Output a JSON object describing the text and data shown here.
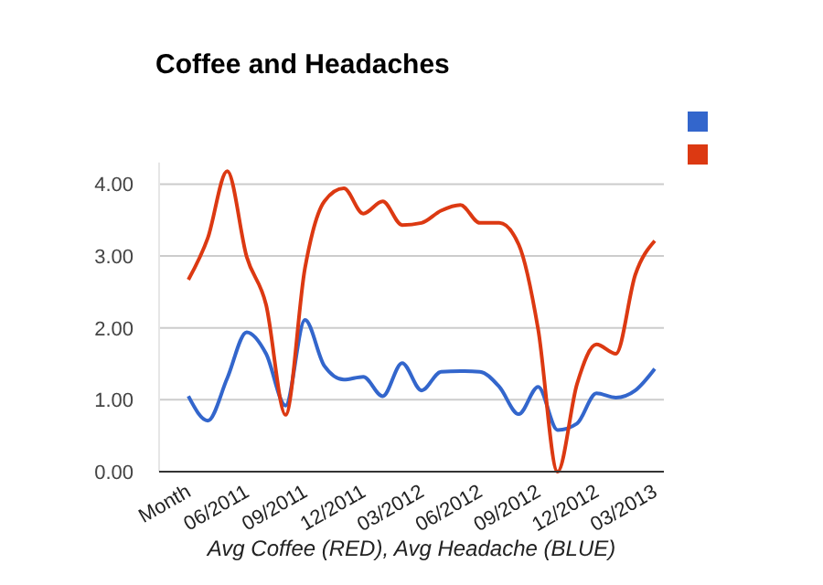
{
  "chart_data": {
    "type": "line",
    "title": "Coffee and Headaches",
    "xlabel": "Avg Coffee (RED), Avg Headache (BLUE)",
    "categories": [
      "Month",
      null,
      null,
      "06/2011",
      null,
      null,
      "09/2011",
      null,
      null,
      "12/2011",
      null,
      null,
      "03/2012",
      null,
      null,
      "06/2012",
      null,
      null,
      "09/2012",
      null,
      null,
      "12/2012",
      null,
      null,
      "03/2013"
    ],
    "series": [
      {
        "color": "#3366cc",
        "values": [
          1.05,
          0.71,
          1.3,
          1.94,
          1.64,
          0.92,
          2.11,
          1.47,
          1.28,
          1.32,
          1.05,
          1.51,
          1.13,
          1.39,
          1.4,
          1.39,
          1.18,
          0.8,
          1.18,
          0.58,
          0.67,
          1.09,
          1.03,
          1.13,
          1.43
        ]
      },
      {
        "color": "#dc3912",
        "values": [
          2.67,
          3.25,
          4.18,
          2.99,
          2.32,
          0.79,
          2.83,
          3.76,
          3.94,
          3.59,
          3.76,
          3.43,
          3.46,
          3.63,
          3.71,
          3.46,
          3.46,
          3.16,
          1.98,
          0,
          1.22,
          1.77,
          1.64,
          2.74,
          3.21
        ]
      }
    ],
    "ylim": [
      0,
      4.3
    ],
    "yticks": [
      {
        "value": 0,
        "label": "0.00"
      },
      {
        "value": 1,
        "label": "1.00"
      },
      {
        "value": 2,
        "label": "2.00"
      },
      {
        "value": 3,
        "label": "3.00"
      },
      {
        "value": 4,
        "label": "4.00"
      }
    ],
    "grid": "y"
  }
}
